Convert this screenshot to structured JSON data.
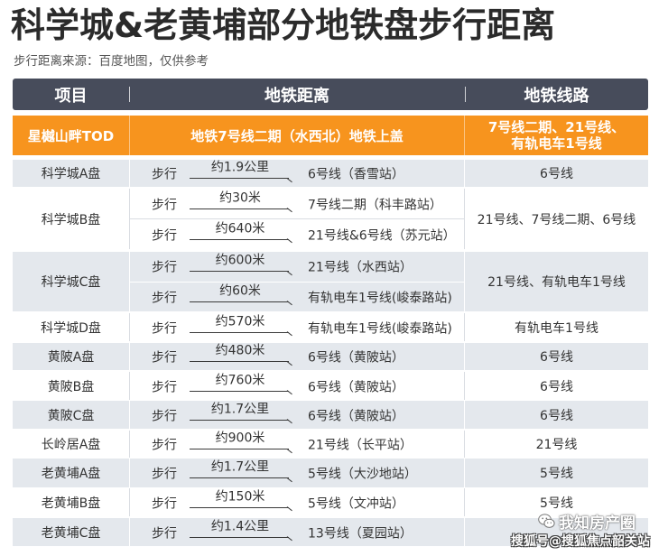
{
  "title": "科学城&老黄埔部分地铁盘步行距离",
  "subtitle": "步行距离来源：百度地图，仅供参考",
  "colors": {
    "title": "#2b2b2b",
    "header_bg": "#474c5b",
    "highlight_bg": "#f7941e",
    "row_shaded_bg": "#e4e8ed",
    "text": "#333333"
  },
  "header": {
    "project": "项目",
    "distance": "地铁距离",
    "lines": "地铁线路"
  },
  "featured": {
    "project": "星樾山畔TOD",
    "distance": "地铁7号线二期（水西北）地铁上盖",
    "lines": [
      "7号线二期、21号线、",
      "有轨电车1号线"
    ]
  },
  "rows": [
    {
      "project": "科学城A盘",
      "routes": [
        {
          "mode": "步行",
          "distance": "约1.9公里",
          "station": "6号线（香雪站）"
        }
      ],
      "lines": "6号线"
    },
    {
      "project": "科学城B盘",
      "routes": [
        {
          "mode": "步行",
          "distance": "约30米",
          "station": "7号线二期（科丰路站）"
        },
        {
          "mode": "步行",
          "distance": "约640米",
          "station": "21号线&6号线（苏元站）"
        }
      ],
      "lines": "21号线、7号线二期、6号线"
    },
    {
      "project": "科学城C盘",
      "routes": [
        {
          "mode": "步行",
          "distance": "约600米",
          "station": "21号线（水西站）"
        },
        {
          "mode": "步行",
          "distance": "约60米",
          "station": "有轨电车1号线(峻泰路站)"
        }
      ],
      "lines": "21号线、有轨电车1号线"
    },
    {
      "project": "科学城D盘",
      "routes": [
        {
          "mode": "步行",
          "distance": "约570米",
          "station": "有轨电车1号线(峻泰路站)"
        }
      ],
      "lines": "有轨电车1号线"
    },
    {
      "project": "黄陂A盘",
      "routes": [
        {
          "mode": "步行",
          "distance": "约480米",
          "station": "6号线（黄陂站）"
        }
      ],
      "lines": "6号线"
    },
    {
      "project": "黄陂B盘",
      "routes": [
        {
          "mode": "步行",
          "distance": "约760米",
          "station": "6号线（黄陂站）"
        }
      ],
      "lines": "6号线"
    },
    {
      "project": "黄陂C盘",
      "routes": [
        {
          "mode": "步行",
          "distance": "约1.7公里",
          "station": "6号线（黄陂站）"
        }
      ],
      "lines": "6号线"
    },
    {
      "project": "长岭居A盘",
      "routes": [
        {
          "mode": "步行",
          "distance": "约900米",
          "station": "21号线（长平站）"
        }
      ],
      "lines": "21号线"
    },
    {
      "project": "老黄埔A盘",
      "routes": [
        {
          "mode": "步行",
          "distance": "约1.7公里",
          "station": "5号线（大沙地站）"
        }
      ],
      "lines": "5号线"
    },
    {
      "project": "老黄埔B盘",
      "routes": [
        {
          "mode": "步行",
          "distance": "约150米",
          "station": "5号线（文冲站）"
        }
      ],
      "lines": "5号线"
    },
    {
      "project": "老黄埔C盘",
      "routes": [
        {
          "mode": "步行",
          "distance": "约1.4公里",
          "station": "13号线（夏园站）"
        }
      ]
    }
  ],
  "watermark": {
    "icon": "wechat-icon",
    "brand": "我知房产圈",
    "source": "搜狐号@搜狐焦点韶关站"
  }
}
